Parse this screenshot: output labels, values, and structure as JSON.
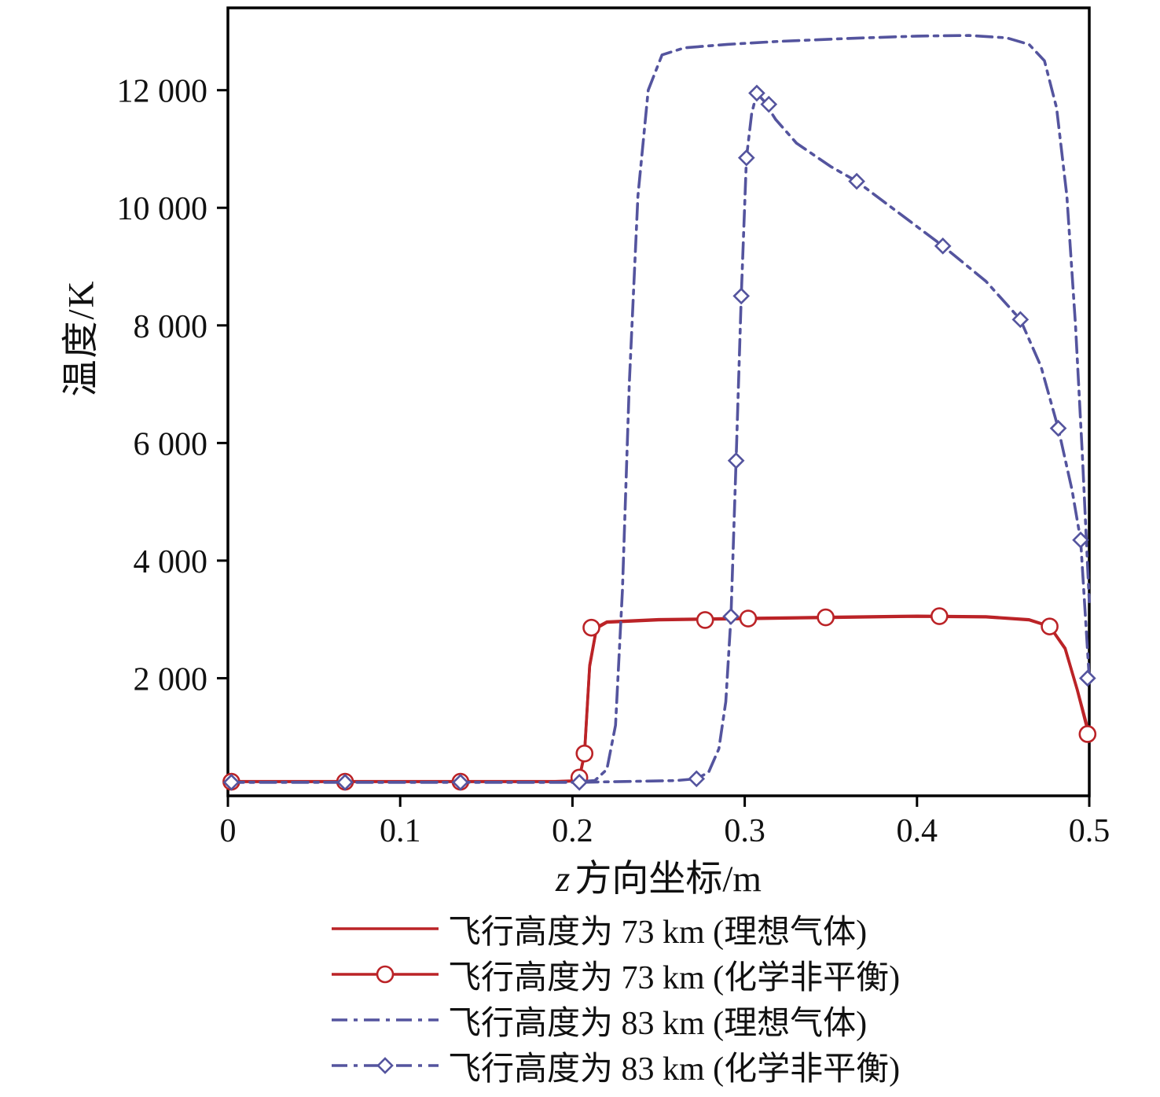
{
  "figure": {
    "background": "#ffffff"
  },
  "chart_data": {
    "type": "line",
    "title": "",
    "xlabel": "z 方向坐标/m",
    "xlabel_var": "z",
    "xlabel_rest": "方向坐标/m",
    "ylabel": "温度/K",
    "xlim": [
      0,
      0.5
    ],
    "ylim": [
      0,
      13400
    ],
    "grid": false,
    "legend_position": "bottom",
    "x_ticks": [
      0,
      0.1,
      0.2,
      0.3,
      0.4,
      0.5
    ],
    "x_tick_labels": [
      "0",
      "0.1",
      "0.2",
      "0.3",
      "0.4",
      "0.5"
    ],
    "y_ticks": [
      2000,
      4000,
      6000,
      8000,
      10000,
      12000
    ],
    "y_tick_labels": [
      "2 000",
      "4 000",
      "6 000",
      "8 000",
      "10 000",
      "12 000"
    ],
    "colors": {
      "red": "#bb2327",
      "blue": "#54549e",
      "axis": "#000000"
    },
    "series": [
      {
        "label": "飞行高度为 73 km (理想气体)",
        "color": "#bb2327",
        "dash": null,
        "marker": null,
        "x": [
          0,
          0.19,
          0.2,
          0.204,
          0.207,
          0.21,
          0.214,
          0.22,
          0.25,
          0.3,
          0.35,
          0.4,
          0.44,
          0.465,
          0.477,
          0.486,
          0.493,
          0.5
        ],
        "y": [
          240,
          240,
          250,
          300,
          700,
          2200,
          2850,
          2950,
          2990,
          3010,
          3030,
          3050,
          3040,
          2990,
          2880,
          2500,
          1800,
          1000
        ]
      },
      {
        "label": "飞行高度为 73 km (化学非平衡)",
        "color": "#bb2327",
        "dash": null,
        "marker": "circle",
        "x": [
          0,
          0.19,
          0.2,
          0.204,
          0.207,
          0.21,
          0.214,
          0.22,
          0.25,
          0.3,
          0.35,
          0.4,
          0.44,
          0.465,
          0.477,
          0.486,
          0.493,
          0.5
        ],
        "y": [
          245,
          245,
          255,
          310,
          720,
          2220,
          2865,
          2960,
          3000,
          3020,
          3040,
          3058,
          3048,
          2998,
          2885,
          2510,
          1810,
          1050
        ],
        "marker_x": [
          0.002,
          0.068,
          0.135,
          0.204,
          0.207,
          0.211,
          0.277,
          0.302,
          0.347,
          0.413,
          0.477,
          0.499
        ],
        "marker_y": [
          240,
          240,
          240,
          310,
          720,
          2860,
          2990,
          3015,
          3035,
          3055,
          2880,
          1050
        ]
      },
      {
        "label": "飞行高度为 83 km (理想气体)",
        "color": "#54549e",
        "dash": "20 8 5 8",
        "marker": null,
        "x": [
          0,
          0.2,
          0.213,
          0.22,
          0.225,
          0.229,
          0.233,
          0.238,
          0.244,
          0.252,
          0.265,
          0.29,
          0.32,
          0.36,
          0.4,
          0.43,
          0.452,
          0.465,
          0.474,
          0.481,
          0.487,
          0.492,
          0.496,
          0.5
        ],
        "y": [
          230,
          230,
          260,
          450,
          1200,
          3500,
          7000,
          10200,
          12000,
          12600,
          12720,
          12780,
          12830,
          12880,
          12920,
          12930,
          12890,
          12780,
          12500,
          11700,
          10200,
          8000,
          5800,
          3300
        ]
      },
      {
        "label": "飞行高度为 83 km (化学非平衡)",
        "color": "#54549e",
        "dash": "20 8 5 8",
        "marker": "diamond",
        "x": [
          0,
          0.205,
          0.26,
          0.272,
          0.279,
          0.285,
          0.289,
          0.292,
          0.295,
          0.298,
          0.301,
          0.304,
          0.307,
          0.311,
          0.318,
          0.33,
          0.35,
          0.365,
          0.39,
          0.415,
          0.44,
          0.46,
          0.472,
          0.482,
          0.49,
          0.495,
          0.5
        ],
        "y": [
          230,
          230,
          260,
          290,
          400,
          800,
          1600,
          3050,
          5700,
          8500,
          10850,
          11600,
          11950,
          11820,
          11500,
          11100,
          10700,
          10450,
          9900,
          9350,
          8750,
          8100,
          7300,
          6250,
          5200,
          4350,
          2000
        ],
        "marker_x": [
          0.002,
          0.068,
          0.135,
          0.204,
          0.272,
          0.292,
          0.295,
          0.298,
          0.301,
          0.307,
          0.314,
          0.365,
          0.415,
          0.46,
          0.482,
          0.495,
          0.499
        ],
        "marker_y": [
          230,
          230,
          230,
          230,
          290,
          3050,
          5700,
          8500,
          10850,
          11950,
          11760,
          10450,
          9350,
          8100,
          6250,
          4350,
          2000
        ]
      }
    ]
  }
}
